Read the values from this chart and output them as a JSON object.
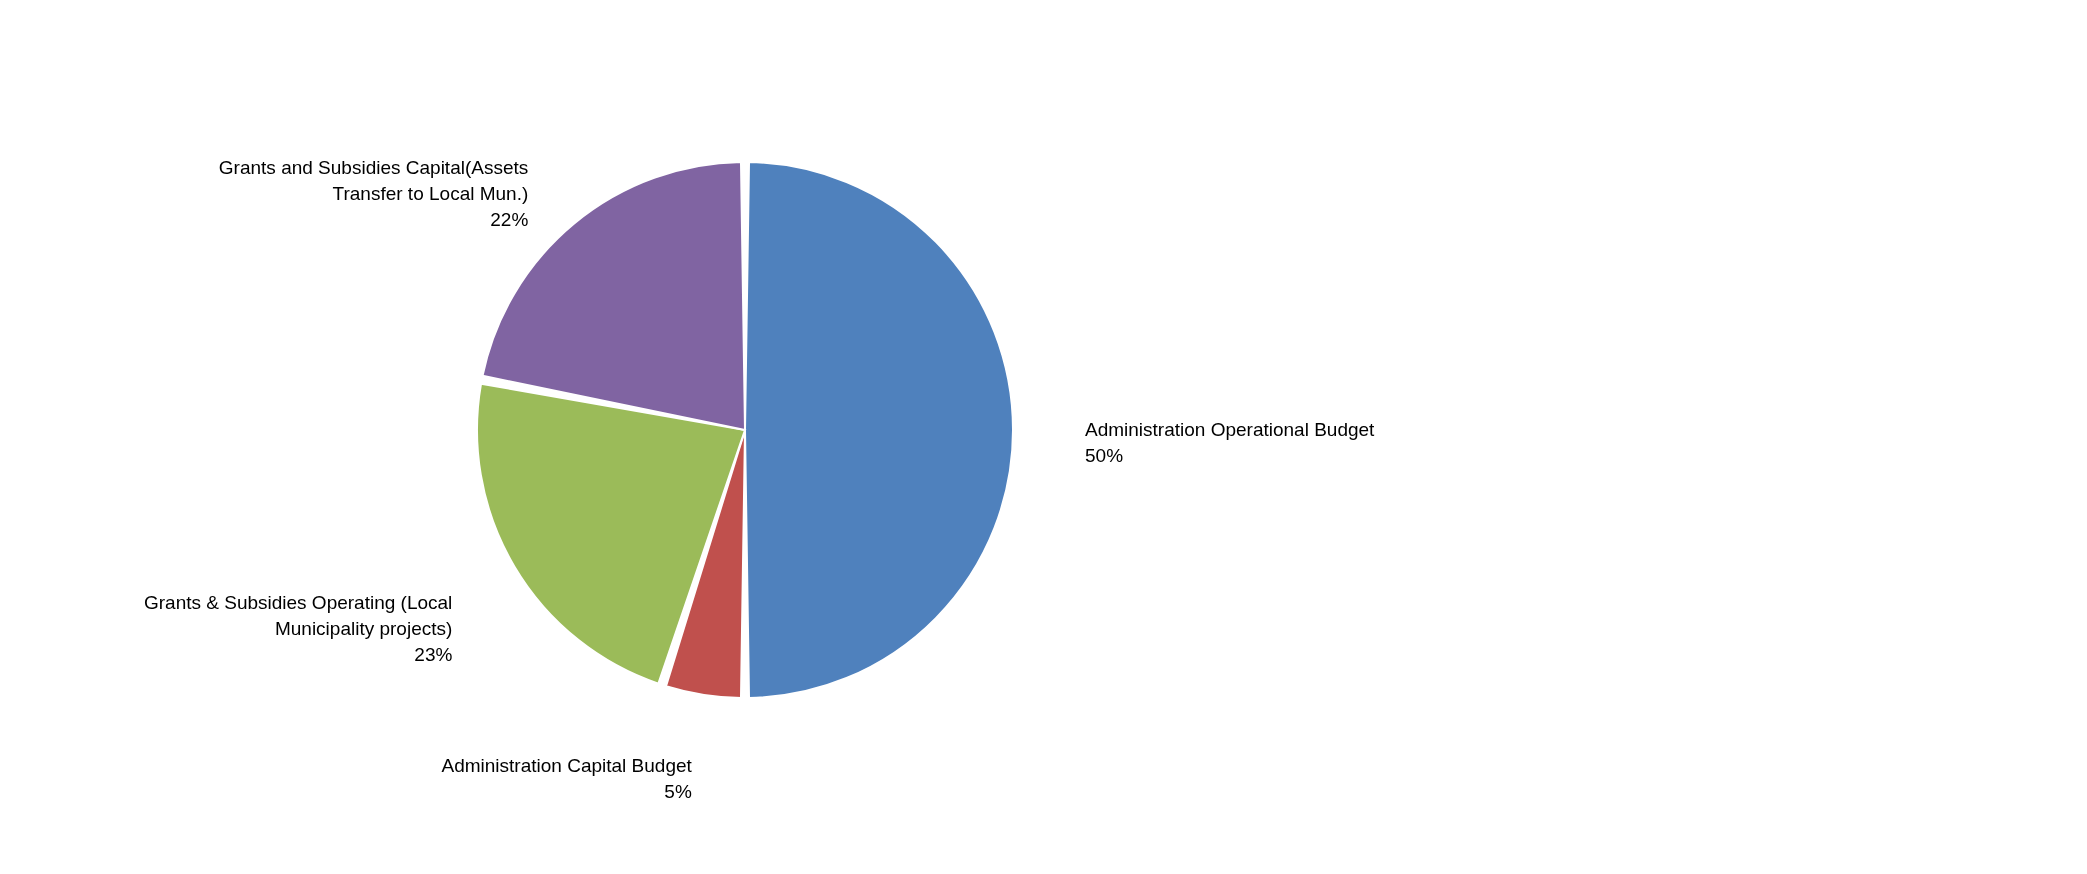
{
  "chart_data": {
    "type": "pie",
    "categories": [
      "Administration Operational Budget",
      "Administration Capital Budget",
      "Grants & Subsidies Operating (Local Municipality projects)",
      "Grants and Subsidies Capital(Assets Transfer to Local Mun.)"
    ],
    "values": [
      50,
      5,
      23,
      22
    ],
    "value_labels": [
      "50%",
      "5%",
      "23%",
      "22%"
    ],
    "colors": [
      "#4f81bd",
      "#c0504d",
      "#9bbb59",
      "#8064a2"
    ],
    "legend": false
  }
}
